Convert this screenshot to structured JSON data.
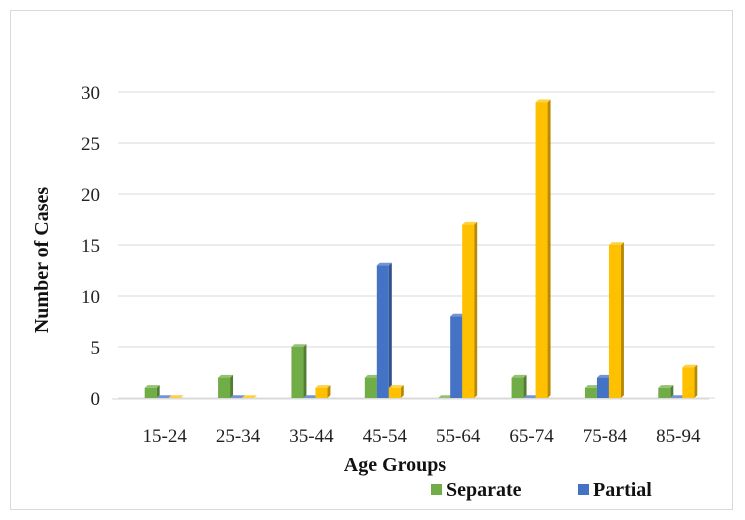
{
  "chart_data": {
    "type": "bar",
    "style": "3d-clustered-column",
    "title": "",
    "xlabel": "Age Groups",
    "ylabel": "Number of Cases",
    "ylim": [
      0,
      30
    ],
    "yticks": [
      0,
      5,
      10,
      15,
      20,
      25,
      30
    ],
    "grid": true,
    "legend_position": "bottom-right",
    "categories": [
      "15-24",
      "25-34",
      "35-44",
      "45-54",
      "55-64",
      "65-74",
      "75-84",
      "85-94"
    ],
    "series": [
      {
        "name": "Separate",
        "color": "#70ad47",
        "values": [
          1,
          2,
          5,
          2,
          0,
          2,
          1,
          1
        ]
      },
      {
        "name": "Partial",
        "color": "#4472c4",
        "values": [
          0,
          0,
          0,
          13,
          8,
          0,
          2,
          0
        ]
      },
      {
        "color": "#ffc000",
        "values": [
          0,
          0,
          1,
          1,
          17,
          29,
          15,
          3
        ]
      }
    ]
  }
}
